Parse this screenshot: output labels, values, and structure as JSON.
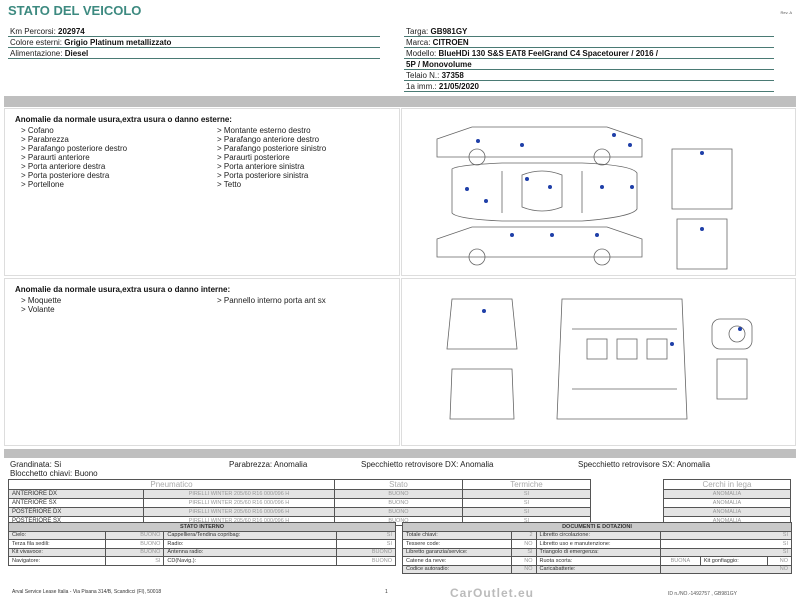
{
  "header": {
    "title": "STATO DEL VEICOLO",
    "rev": "Rev. A"
  },
  "vehicle_left": [
    {
      "label": "Km Percorsi: ",
      "value": "202974"
    },
    {
      "label": "Colore esterni: ",
      "value": "Grigio Platinum metallizzato"
    },
    {
      "label": "Alimentazione: ",
      "value": "Diesel"
    }
  ],
  "vehicle_right": [
    {
      "label": "Targa: ",
      "value": "GB981GY"
    },
    {
      "label": "Marca: ",
      "value": "CITROEN"
    },
    {
      "label": "Modello: ",
      "value": "BlueHDi 130 S&S EAT8 FeelGrand C4 Spacetourer / 2016 /"
    },
    {
      "label": "",
      "value": "5P / Monovolume"
    },
    {
      "label": "Telaio N.: ",
      "value": "37358"
    },
    {
      "label": "1a imm.: ",
      "value": "21/05/2020"
    }
  ],
  "external": {
    "title": "Anomalie da normale usura,extra usura o danno esterne:",
    "col1": [
      "> Cofano",
      "> Parabrezza",
      "> Parafango posteriore destro",
      "> Paraurti anteriore",
      "> Porta anteriore destra",
      "> Porta posteriore destra",
      "> Portellone"
    ],
    "col2": [
      "> Montante esterno destro",
      "> Parafango anteriore destro",
      "> Parafango posteriore sinistro",
      "> Paraurti posteriore",
      "> Porta anteriore sinistra",
      "> Porta posteriore sinistra",
      "> Tetto"
    ]
  },
  "internal": {
    "title": "Anomalie da normale usura,extra usura o danno interne:",
    "col1": [
      "> Moquette",
      "> Volante"
    ],
    "col2": [
      "> Pannello interno porta ant sx"
    ]
  },
  "summary": {
    "grandinata": "Grandinata: Si",
    "blocchetto": "Blocchetto chiavi: Buono",
    "parabrezza": "Parabrezza: Anomalia",
    "specchietto_dx": "Specchietto retrovisore DX: Anomalia",
    "specchietto_sx": "Specchietto retrovisore SX: Anomalia"
  },
  "tyres": {
    "headers": [
      "Pneumatico",
      "Stato",
      "Termiche",
      "Cerchi in lega"
    ],
    "rows": [
      {
        "pos": "ANTERIORE DX",
        "tyre": "PIRELLI WINTER 205/60 R16 000/096 H",
        "stato": "BUONO",
        "term": "SI",
        "cerchi": "ANOMALIA"
      },
      {
        "pos": "ANTERIORE SX",
        "tyre": "PIRELLI WINTER 205/60 R16 000/096 H",
        "stato": "BUONO",
        "term": "SI",
        "cerchi": "ANOMALIA"
      },
      {
        "pos": "POSTERIORE DX",
        "tyre": "PIRELLI WINTER 205/60 R16 000/096 H",
        "stato": "BUONO",
        "term": "SI",
        "cerchi": "ANOMALIA"
      },
      {
        "pos": "POSTERIORE SX",
        "tyre": "PIRELLI WINTER 205/60 R16 000/096 H",
        "stato": "BUONO",
        "term": "SI",
        "cerchi": "ANOMALIA"
      }
    ]
  },
  "stato_interno": {
    "title": "STATO INTERNO",
    "rows": [
      [
        "Cielo:",
        "BUONO",
        "Cappelliera/Tendina copribag:",
        "SI"
      ],
      [
        "Terza fila sedili:",
        "BUONO",
        "Radio:",
        "SI"
      ],
      [
        "Kit vivavoce:",
        "BUONO",
        "Antenna radio:",
        "BUONO"
      ],
      [
        "Navigatore:",
        "SI",
        "CD(Navig.):",
        "BUONO"
      ]
    ]
  },
  "documenti": {
    "title": "DOCUMENTI E DOTAZIONI",
    "rows": [
      [
        "Totale chiavi:",
        "2",
        "Libretto circolazione:",
        "SI"
      ],
      [
        "Tessere code:",
        "NO",
        "Libretto uso e manutenzione:",
        "SI"
      ],
      [
        "Libretto garanzia/service:",
        "SI",
        "Triangolo di emergenza:",
        "SI"
      ],
      [
        "Catene da neve:",
        "NO",
        "Ruota scorta:",
        "BUONA"
      ],
      [
        "Codice autoradio:",
        "NO",
        "Caricabatterie:",
        "NO"
      ]
    ],
    "kit_label": "Kit gonfiaggio:",
    "kit_value": "NO"
  },
  "footer": {
    "address": "Arval Service Lease Italia - Via Pisana 314/B, Scandicci (FI), 50018",
    "page": "1",
    "id": "ID n./NO.-1492757 , GB981GY",
    "watermark": "CarOutlet.eu"
  },
  "colors": {
    "title": "#3d8a80",
    "dot": "#1f3fa8"
  }
}
